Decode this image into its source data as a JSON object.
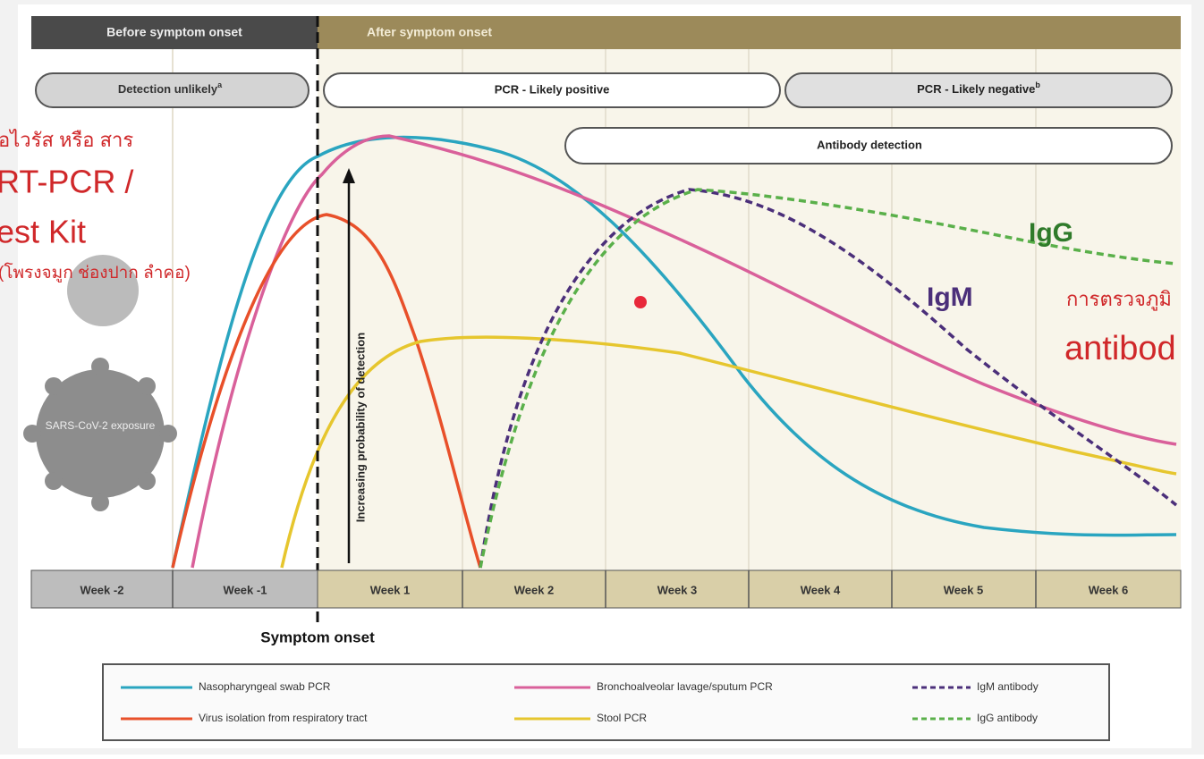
{
  "header": {
    "before": "Before symptom onset",
    "after": "After symptom onset"
  },
  "bands": {
    "detection_unlikely": "Detection unlikely",
    "detection_unlikely_note": "a",
    "pcr_positive": "PCR - Likely positive",
    "pcr_negative": "PCR - Likely negative",
    "pcr_negative_note": "b",
    "antibody": "Antibody detection"
  },
  "weeks": [
    "Week -2",
    "Week -1",
    "Week 1",
    "Week 2",
    "Week 3",
    "Week 4",
    "Week 5",
    "Week 6"
  ],
  "axis_label": "Increasing probability of detection",
  "symptom_onset": "Symptom onset",
  "exposure": "SARS-CoV-2 exposure",
  "curve_labels": {
    "igg": "IgG",
    "igm": "IgM"
  },
  "overlay": {
    "line1": "ื้อไวรัส หรือ สาร",
    "line2": "RT-PCR /",
    "line3": "est Kit",
    "line4": "(โพรงจมูก ช่องปาก ลำคอ)",
    "right1": "การตรวจภูมิ",
    "right2": "antibod"
  },
  "legend": [
    "Nasopharyngeal swab PCR",
    "Virus isolation from respiratory tract",
    "Bronchoalveolar lavage/sputum PCR",
    "Stool PCR",
    "IgM antibody",
    "IgG antibody"
  ]
}
